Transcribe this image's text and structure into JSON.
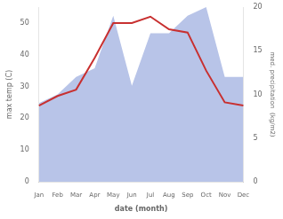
{
  "chart_data": {
    "type": "line",
    "categories": [
      "Jan",
      "Feb",
      "Mar",
      "Apr",
      "May",
      "Jun",
      "Jul",
      "Aug",
      "Sep",
      "Oct",
      "Nov",
      "Dec"
    ],
    "series": [
      {
        "type": "area",
        "color": "#b8c4e8",
        "axis": "y2",
        "values": [
          9,
          10,
          12,
          13,
          19,
          11,
          17,
          17,
          19,
          20,
          12,
          12
        ]
      },
      {
        "type": "line",
        "color": "#c83030",
        "values": [
          24,
          27,
          29,
          39,
          50,
          50,
          52,
          48,
          47,
          35,
          25,
          24
        ]
      }
    ],
    "xlabel": "date (month)",
    "ylabel": "max temp (C)",
    "y2label": "med. precipitation  (kg/m2)",
    "ylim": [
      0,
      55
    ],
    "yticks": [
      0,
      10,
      20,
      30,
      40,
      50
    ],
    "y2lim": [
      0,
      20
    ],
    "y2ticks": [
      0,
      5,
      10,
      15,
      20
    ],
    "grid": false
  }
}
